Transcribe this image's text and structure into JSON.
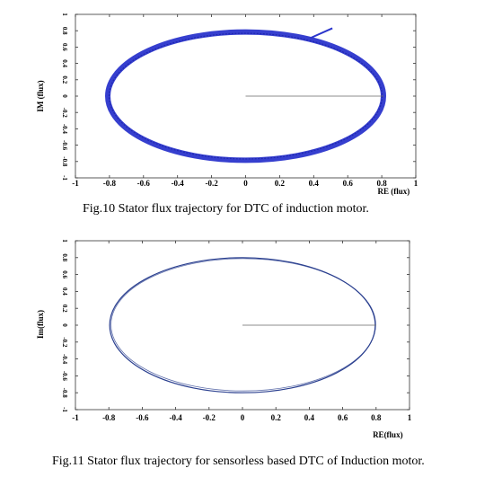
{
  "figures": [
    {
      "caption": "Fig.10 Stator flux trajectory for DTC of induction motor."
    },
    {
      "caption": "Fig.11 Stator flux trajectory for sensorless based DTC of Induction motor."
    }
  ],
  "chart_data": [
    {
      "type": "line",
      "title": "",
      "xlabel": "RE (flux)",
      "ylabel": "IM (flux)",
      "xlim": [
        -1,
        1
      ],
      "ylim": [
        -1,
        1
      ],
      "xticks": [
        "-1",
        "-0.8",
        "-0.6",
        "-0.4",
        "-0.2",
        "0",
        "0.2",
        "0.4",
        "0.6",
        "0.8",
        "1"
      ],
      "yticks": [
        "-1",
        "-0.8",
        "-0.6",
        "-0.4",
        "-0.2",
        "0",
        "0.2",
        "0.4",
        "0.6",
        "0.8",
        "1"
      ],
      "grid": false,
      "color": "#2b35cc",
      "style": "thick",
      "series": [
        {
          "kind": "ellipse",
          "center": [
            0,
            0
          ],
          "rx": 0.81,
          "ry": 0.785
        },
        {
          "kind": "segment",
          "x": [
            0,
            0.81
          ],
          "y": [
            0,
            0
          ]
        },
        {
          "kind": "segment",
          "x": [
            0.38,
            0.51
          ],
          "y": [
            0.71,
            0.83
          ]
        }
      ]
    },
    {
      "type": "line",
      "title": "",
      "xlabel": "RE(flux)",
      "ylabel": "Im(flux)",
      "xlim": [
        -1,
        1
      ],
      "ylim": [
        -1,
        1
      ],
      "xticks": [
        "-1",
        "-0.8",
        "-0.6",
        "-0.4",
        "-0.2",
        "0",
        "0.2",
        "0.4",
        "0.6",
        "0.8",
        "1"
      ],
      "yticks": [
        "-1",
        "-0.8",
        "-0.6",
        "-0.4",
        "-0.2",
        "0",
        "0.2",
        "0.4",
        "0.6",
        "0.8",
        "1"
      ],
      "grid": false,
      "color": "#2a3f8f",
      "style": "thin",
      "series": [
        {
          "kind": "ellipse",
          "center": [
            0,
            0
          ],
          "rx": 0.795,
          "ry": 0.8
        },
        {
          "kind": "segment",
          "x": [
            0,
            0.8
          ],
          "y": [
            0,
            0
          ]
        }
      ]
    }
  ]
}
